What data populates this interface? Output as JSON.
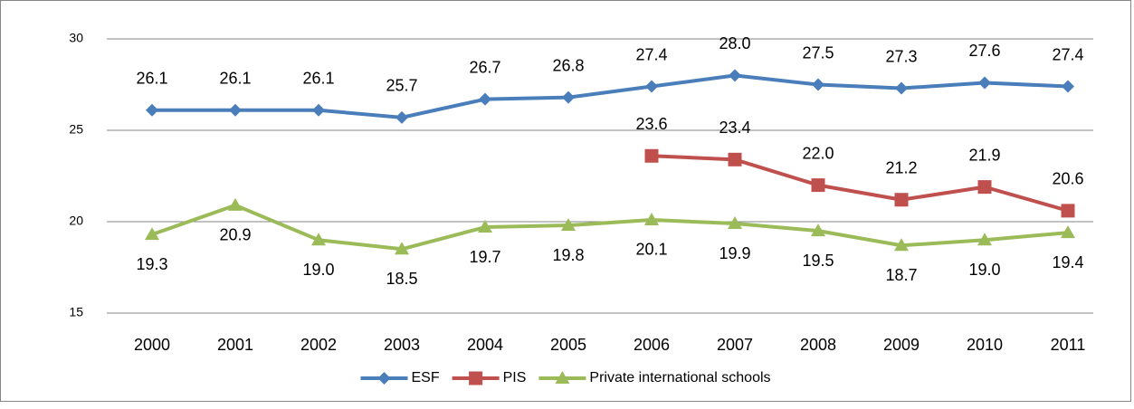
{
  "chart_data": {
    "type": "line",
    "categories": [
      "2000",
      "2001",
      "2002",
      "2003",
      "2004",
      "2005",
      "2006",
      "2007",
      "2008",
      "2009",
      "2010",
      "2011"
    ],
    "series": [
      {
        "name": "ESF",
        "color": "#4a7ebb",
        "marker": "diamond",
        "values": [
          26.1,
          26.1,
          26.1,
          25.7,
          26.7,
          26.8,
          27.4,
          28.0,
          27.5,
          27.3,
          27.6,
          27.4
        ],
        "value_labels": [
          "26.1",
          "26.1",
          "26.1",
          "25.7",
          "26.7",
          "26.8",
          "27.4",
          "28.0",
          "27.5",
          "27.3",
          "27.6",
          "27.4"
        ]
      },
      {
        "name": "PIS",
        "color": "#c0504d",
        "marker": "square",
        "values": [
          null,
          null,
          null,
          null,
          null,
          null,
          23.6,
          23.4,
          22.0,
          21.2,
          21.9,
          20.6
        ],
        "value_labels": [
          null,
          null,
          null,
          null,
          null,
          null,
          "23.6",
          "23.4",
          "22.0",
          "21.2",
          "21.9",
          "20.6"
        ]
      },
      {
        "name": "Private international schools",
        "color": "#9bbb59",
        "marker": "triangle",
        "values": [
          19.3,
          20.9,
          19.0,
          18.5,
          19.7,
          19.8,
          20.1,
          19.9,
          19.5,
          18.7,
          19.0,
          19.4
        ],
        "value_labels": [
          "19.3",
          "20.9",
          "19.0",
          "18.5",
          "19.7",
          "19.8",
          "20.1",
          "19.9",
          "19.5",
          "18.7",
          "19.0",
          "19.4"
        ]
      }
    ],
    "ylim": [
      15,
      30
    ],
    "yticks": [
      15,
      20,
      25,
      30
    ],
    "grid": true,
    "legend": "bottom"
  }
}
